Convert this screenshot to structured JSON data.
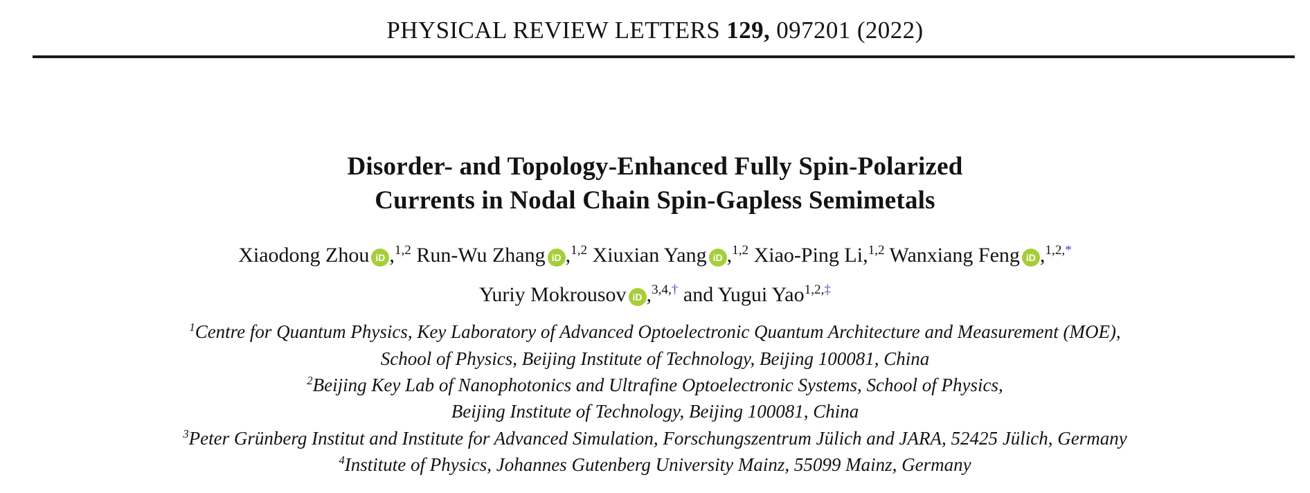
{
  "journal_header": {
    "name": "PHYSICAL REVIEW LETTERS",
    "volume": "129,",
    "article": "097201",
    "year": "(2022)"
  },
  "title": {
    "line1": "Disorder- and Topology-Enhanced Fully Spin-Polarized",
    "line2": "Currents in Nodal Chain Spin-Gapless Semimetals"
  },
  "authors": {
    "line1": [
      {
        "prefix": "",
        "name": "Xiaodong Zhou",
        "orcid": true,
        "comma": true,
        "sup": "1,2",
        "symbol": ""
      },
      {
        "prefix": "",
        "name": "Run-Wu Zhang",
        "orcid": true,
        "comma": true,
        "sup": "1,2",
        "symbol": ""
      },
      {
        "prefix": "",
        "name": "Xiuxian Yang",
        "orcid": true,
        "comma": true,
        "sup": "1,2",
        "symbol": ""
      },
      {
        "prefix": "",
        "name": "Xiao-Ping Li",
        "orcid": false,
        "comma": true,
        "sup": "1,2",
        "symbol": ""
      },
      {
        "prefix": "",
        "name": "Wanxiang Feng",
        "orcid": true,
        "comma": true,
        "sup": "1,2,",
        "symbol": "*"
      }
    ],
    "line2": [
      {
        "prefix": "",
        "name": "Yuriy Mokrousov",
        "orcid": true,
        "comma": true,
        "sup": "3,4,",
        "symbol": "†"
      },
      {
        "prefix": "and ",
        "name": "Yugui Yao",
        "orcid": false,
        "comma": false,
        "sup": "1,2,",
        "symbol": "‡"
      }
    ]
  },
  "affiliations": [
    {
      "sup": "1",
      "text": "Centre for Quantum Physics, Key Laboratory of Advanced Optoelectronic Quantum Architecture and Measurement (MOE),"
    },
    {
      "sup": "",
      "text": "School of Physics, Beijing Institute of Technology, Beijing 100081, China"
    },
    {
      "sup": "2",
      "text": "Beijing Key Lab of Nanophotonics and Ultrafine Optoelectronic Systems, School of Physics,"
    },
    {
      "sup": "",
      "text": "Beijing Institute of Technology, Beijing 100081, China"
    },
    {
      "sup": "3",
      "text": "Peter Grünberg Institut and Institute for Advanced Simulation, Forschungszentrum Jülich and JARA, 52425 Jülich, Germany"
    },
    {
      "sup": "4",
      "text": "Institute of Physics, Johannes Gutenberg University Mainz, 55099 Mainz, Germany"
    }
  ],
  "icons": {
    "orcid_label": "iD"
  },
  "colors": {
    "text": "#131313",
    "rule": "#1a1a1a",
    "footnote_link_blue": "#3b4cc0",
    "orcid_green": "#a6ce39"
  }
}
